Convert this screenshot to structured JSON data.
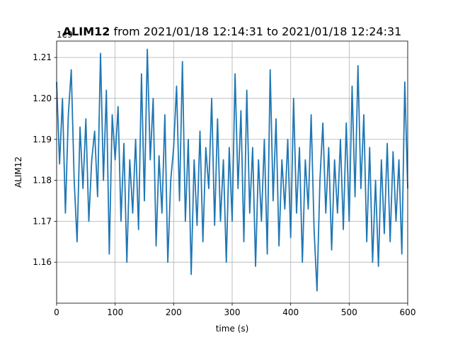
{
  "chart_data": {
    "type": "line",
    "title_bold": "ALIM12",
    "title_rest": " from 2021/01/18 12:14:31 to 2021/01/18 12:24:31",
    "xlabel": "time (s)",
    "ylabel": "ALIM12",
    "y_offset_label": "1e9",
    "xlim": [
      0,
      600
    ],
    "ylim": [
      1.15,
      1.214
    ],
    "x_ticks": [
      0,
      100,
      200,
      300,
      400,
      500,
      600
    ],
    "x_tick_labels": [
      "0",
      "100",
      "200",
      "300",
      "400",
      "500",
      "600"
    ],
    "y_ticks": [
      1.16,
      1.17,
      1.18,
      1.19,
      1.2,
      1.21
    ],
    "y_tick_labels": [
      "1.16",
      "1.17",
      "1.18",
      "1.19",
      "1.20",
      "1.21"
    ],
    "grid": true,
    "series": [
      {
        "color": "#1f77b4",
        "x": [
          0,
          5,
          10,
          15,
          20,
          25,
          30,
          35,
          40,
          45,
          50,
          55,
          60,
          65,
          70,
          75,
          80,
          85,
          90,
          95,
          100,
          105,
          110,
          115,
          120,
          125,
          130,
          135,
          140,
          145,
          150,
          155,
          160,
          165,
          170,
          175,
          180,
          185,
          190,
          195,
          200,
          205,
          210,
          215,
          220,
          225,
          230,
          235,
          240,
          245,
          250,
          255,
          260,
          265,
          270,
          275,
          280,
          285,
          290,
          295,
          300,
          305,
          310,
          315,
          320,
          325,
          330,
          335,
          340,
          345,
          350,
          355,
          360,
          365,
          370,
          375,
          380,
          385,
          390,
          395,
          400,
          405,
          410,
          415,
          420,
          425,
          430,
          435,
          440,
          445,
          450,
          455,
          460,
          465,
          470,
          475,
          480,
          485,
          490,
          495,
          500,
          505,
          510,
          515,
          520,
          525,
          530,
          535,
          540,
          545,
          550,
          555,
          560,
          565,
          570,
          575,
          580,
          585,
          590,
          595,
          600
        ],
        "y": [
          1.204,
          1.184,
          1.2,
          1.172,
          1.196,
          1.207,
          1.18,
          1.165,
          1.193,
          1.178,
          1.195,
          1.17,
          1.185,
          1.192,
          1.176,
          1.211,
          1.18,
          1.202,
          1.162,
          1.196,
          1.185,
          1.198,
          1.17,
          1.189,
          1.16,
          1.185,
          1.172,
          1.19,
          1.168,
          1.206,
          1.175,
          1.212,
          1.185,
          1.2,
          1.164,
          1.186,
          1.172,
          1.196,
          1.16,
          1.18,
          1.188,
          1.203,
          1.175,
          1.209,
          1.17,
          1.19,
          1.157,
          1.185,
          1.169,
          1.192,
          1.165,
          1.188,
          1.178,
          1.2,
          1.169,
          1.195,
          1.17,
          1.185,
          1.16,
          1.188,
          1.17,
          1.206,
          1.178,
          1.197,
          1.165,
          1.202,
          1.172,
          1.188,
          1.159,
          1.185,
          1.17,
          1.19,
          1.162,
          1.207,
          1.175,
          1.195,
          1.164,
          1.185,
          1.173,
          1.19,
          1.166,
          1.2,
          1.172,
          1.188,
          1.16,
          1.185,
          1.173,
          1.196,
          1.168,
          1.153,
          1.18,
          1.194,
          1.172,
          1.188,
          1.163,
          1.185,
          1.172,
          1.19,
          1.168,
          1.194,
          1.17,
          1.203,
          1.176,
          1.208,
          1.178,
          1.196,
          1.165,
          1.188,
          1.16,
          1.18,
          1.159,
          1.185,
          1.167,
          1.189,
          1.165,
          1.187,
          1.17,
          1.185,
          1.162,
          1.204,
          1.178
        ]
      }
    ]
  }
}
